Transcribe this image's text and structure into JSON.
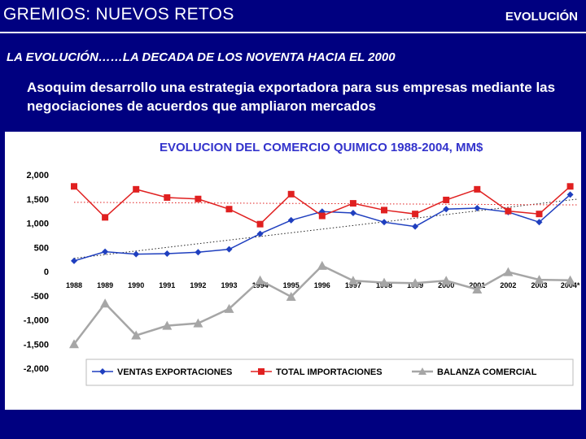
{
  "header": {
    "title": "GREMIOS: NUEVOS RETOS",
    "section": "EVOLUCIÓN"
  },
  "subtitle": "LA EVOLUCIÓN……LA DECADA DE LOS NOVENTA HACIA EL 2000",
  "description": "Asoquim desarrollo una estrategia exportadora para sus empresas mediante las negociaciones de acuerdos que ampliaron mercados",
  "colors": {
    "background": "#000080",
    "series_exports": "#1f3fbf",
    "series_imports": "#e02020",
    "series_balance": "#a6a6a6",
    "chart_title": "#3333cc"
  },
  "chart_data": {
    "type": "line",
    "title": "EVOLUCION DEL COMERCIO  QUIMICO 1988-2004, MM$",
    "xlabel": "",
    "ylabel": "",
    "categories": [
      "1988",
      "1989",
      "1990",
      "1991",
      "1992",
      "1993",
      "1994",
      "1995",
      "1996",
      "1997",
      "1998",
      "1999",
      "2000",
      "2001",
      "2002",
      "2003",
      "2004*"
    ],
    "ylim": [
      -2000,
      2000
    ],
    "yticks": [
      2000,
      1500,
      1000,
      500,
      0,
      -500,
      -1000,
      -1500,
      -2000
    ],
    "ytick_labels": [
      "2,000",
      "1,500",
      "1,000",
      "500",
      "0",
      "-500",
      "-1,000",
      "-1,500",
      "-2,000"
    ],
    "legend_position": "bottom",
    "series": [
      {
        "name": "VENTAS  EXPORTACIONES",
        "marker": "diamond",
        "values": [
          220,
          410,
          360,
          370,
          400,
          460,
          780,
          1060,
          1240,
          1210,
          1020,
          930,
          1290,
          1310,
          1230,
          1020,
          1590
        ]
      },
      {
        "name": "TOTAL IMPORTACIONES",
        "marker": "square",
        "values": [
          1760,
          1120,
          1700,
          1530,
          1500,
          1290,
          980,
          1600,
          1150,
          1410,
          1270,
          1190,
          1480,
          1700,
          1250,
          1190,
          1760
        ]
      },
      {
        "name": "BALANZA COMERCIAL",
        "marker": "triangle",
        "values": [
          -1500,
          -660,
          -1320,
          -1120,
          -1070,
          -770,
          -180,
          -520,
          120,
          -190,
          -230,
          -240,
          -190,
          -370,
          -10,
          -170,
          -180
        ]
      }
    ]
  }
}
